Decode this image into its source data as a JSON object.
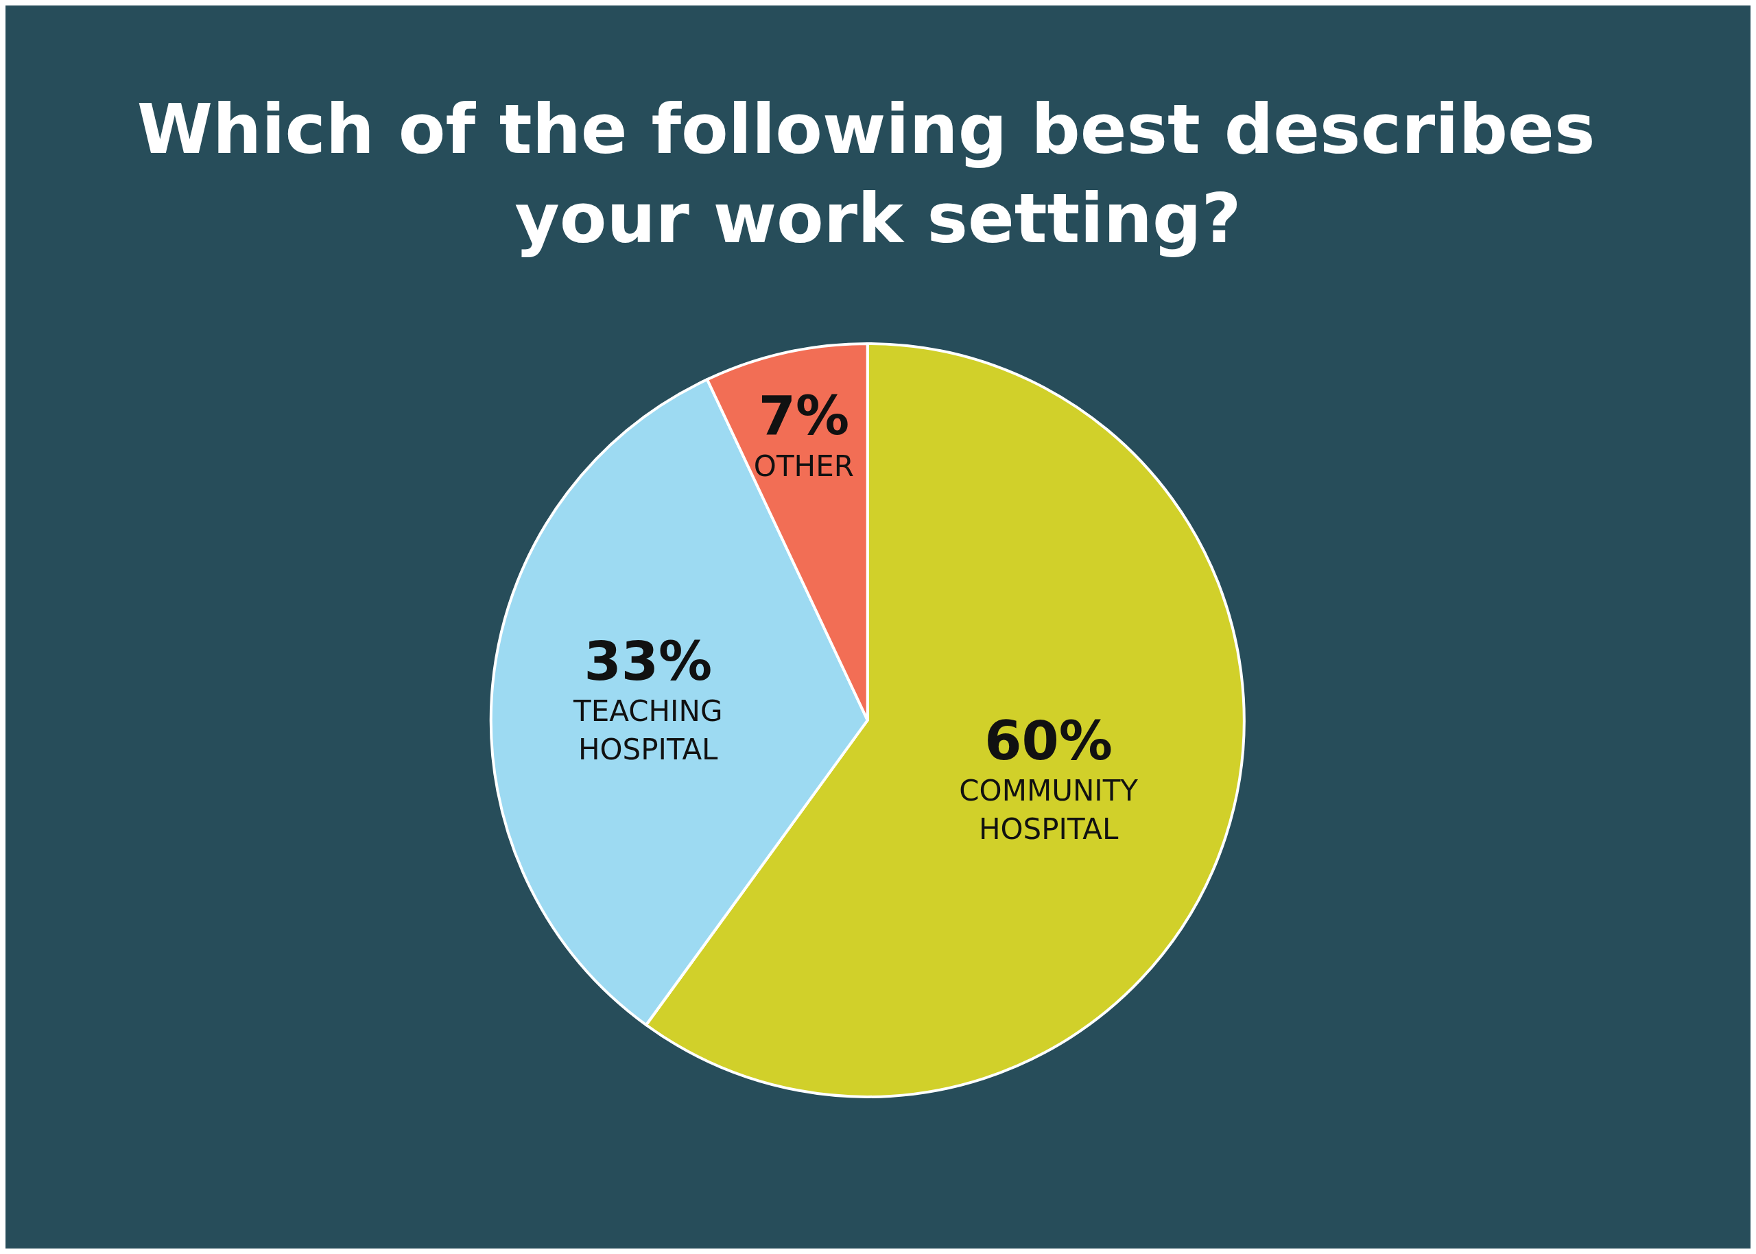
{
  "chart_data": {
    "type": "pie",
    "title": "Which of the following best describes your work setting?",
    "categories": [
      "COMMUNITY HOSPITAL",
      "TEACHING HOSPITAL",
      "OTHER"
    ],
    "values": [
      60,
      33,
      7
    ],
    "colors": [
      "#d1d02a",
      "#9ddaf2",
      "#f26e55"
    ],
    "value_labels": [
      "60%",
      "33%",
      "7%"
    ],
    "legend": false
  }
}
